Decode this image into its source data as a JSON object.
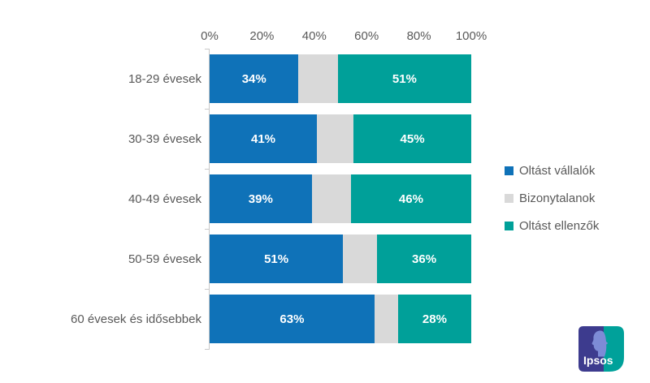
{
  "chart_data": {
    "type": "bar",
    "orientation": "horizontal",
    "stacked": true,
    "title": "",
    "categories": [
      "18-29 évesek",
      "30-39 évesek",
      "40-49 évesek",
      "50-59 évesek",
      "60 évesek és idősebbek"
    ],
    "series": [
      {
        "name": "Oltást vállalók",
        "color": "#0F72B8",
        "values": [
          34,
          41,
          39,
          51,
          63
        ],
        "show_labels": true
      },
      {
        "name": "Bizonytalanok",
        "color": "#D9D9D9",
        "values": [
          15,
          14,
          15,
          13,
          9
        ],
        "show_labels": false
      },
      {
        "name": "Oltást ellenzők",
        "color": "#00A099",
        "values": [
          51,
          45,
          46,
          36,
          28
        ],
        "show_labels": true
      }
    ],
    "x_axis": {
      "min": 0,
      "max": 100,
      "tick_labels": [
        "0%",
        "20%",
        "40%",
        "60%",
        "80%",
        "100%"
      ]
    },
    "value_suffix": "%",
    "legend_position": "right",
    "grid": false,
    "axis_color": "#C9C9C9",
    "label_color": "#595959",
    "value_label_color": "#FFFFFF"
  },
  "branding": {
    "logo_text": "Ipsos",
    "logo_navy": "#3D3B8E",
    "logo_teal": "#00A19A",
    "logo_face": "#7D8BD6",
    "logo_text_color": "#FFFFFF"
  }
}
